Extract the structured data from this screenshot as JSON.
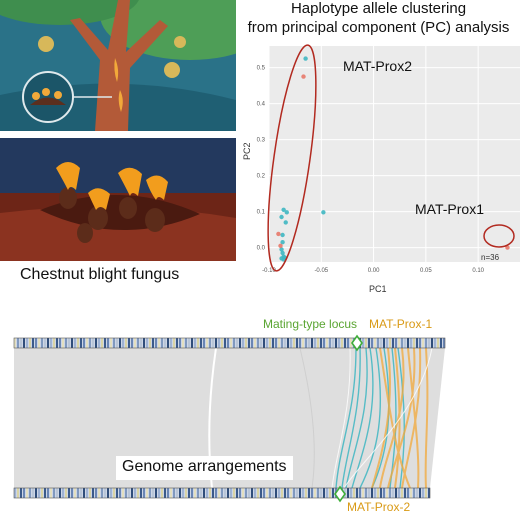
{
  "pca": {
    "title_line1": "Haplotype allele clustering",
    "title_line2": "from principal component (PC) analysis",
    "xlabel": "PC1",
    "ylabel": "PC2",
    "cluster_labels": {
      "prox2": "MAT-Prox2",
      "prox1": "MAT-Prox1"
    },
    "annotation": "n=36"
  },
  "fungus_caption": "Chestnut blight fungus",
  "genome": {
    "mating_locus": "Mating-type locus",
    "prox1": "MAT-Prox-1",
    "prox2": "MAT-Prox-2",
    "caption": "Genome arrangements"
  },
  "colors": {
    "teal": "#3fb7c2",
    "salmon": "#e8796a",
    "red_ellipse": "#b22a20",
    "orange_link": "#f2a93a",
    "green_diamond": "#3fae3a",
    "plot_bg": "#ebebeb"
  },
  "chart_data": {
    "type": "scatter",
    "title": "Haplotype allele clustering from principal component (PC) analysis",
    "xlabel": "PC1",
    "ylabel": "PC2",
    "xlim": [
      -0.1,
      0.14
    ],
    "ylim": [
      -0.04,
      0.56
    ],
    "x_ticks": [
      "-0.10",
      "-0.05",
      "0.00",
      "0.05",
      "0.10"
    ],
    "y_ticks": [
      "0.0",
      "0.1",
      "0.2",
      "0.3",
      "0.4",
      "0.5"
    ],
    "grid": true,
    "series": [
      {
        "color": "#3fb7c2",
        "points": [
          [
            -0.065,
            0.525
          ],
          [
            -0.086,
            0.105
          ],
          [
            -0.083,
            0.098
          ],
          [
            -0.048,
            0.098
          ],
          [
            -0.088,
            0.085
          ],
          [
            -0.084,
            0.07
          ],
          [
            -0.087,
            0.035
          ],
          [
            -0.087,
            0.015
          ],
          [
            -0.088,
            -0.005
          ],
          [
            -0.087,
            -0.015
          ],
          [
            -0.086,
            -0.025
          ],
          [
            -0.085,
            -0.028
          ],
          [
            -0.088,
            -0.03
          ],
          [
            -0.086,
            -0.033
          ]
        ]
      },
      {
        "color": "#e8796a",
        "points": [
          [
            -0.067,
            0.475
          ],
          [
            -0.091,
            0.038
          ],
          [
            -0.089,
            0.005
          ],
          [
            0.128,
            0.0
          ]
        ]
      }
    ]
  }
}
